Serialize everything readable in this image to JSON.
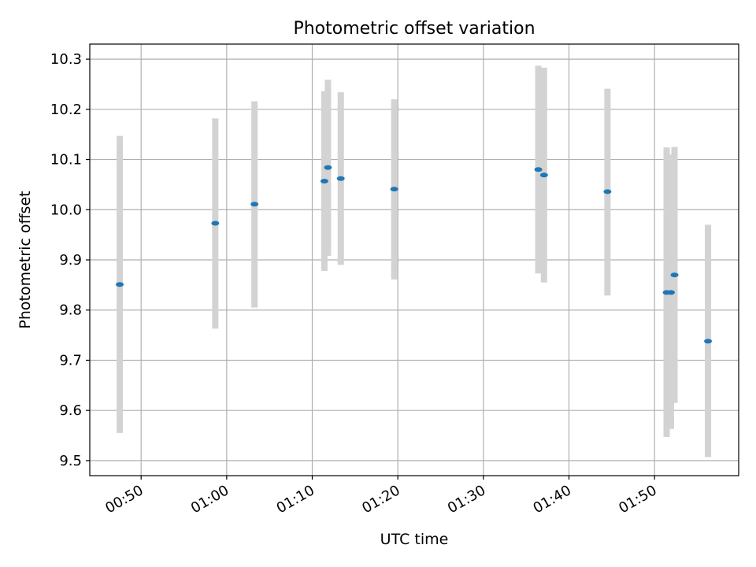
{
  "chart_data": {
    "type": "scatter",
    "title": "Photometric offset variation",
    "xlabel": "UTC time",
    "ylabel": "Photometric offset",
    "x_tick_labels": [
      "00:50",
      "01:00",
      "01:10",
      "01:20",
      "01:30",
      "01:40",
      "01:50"
    ],
    "y_tick_labels": [
      "9.5",
      "9.6",
      "9.7",
      "9.8",
      "9.9",
      "10.0",
      "10.1",
      "10.2",
      "10.3"
    ],
    "xlim": [
      "00:44:00",
      "01:59:50"
    ],
    "ylim": [
      9.47,
      10.33
    ],
    "grid": true,
    "colors": {
      "points": "#1f77b4",
      "error_bars": "#d3d3d3",
      "grid": "#b0b0b0"
    },
    "series": [
      {
        "points": [
          {
            "x": "00:47:30",
            "y": 9.851,
            "ylow": 9.555,
            "yhigh": 10.147
          },
          {
            "x": "00:58:40",
            "y": 9.973,
            "ylow": 9.763,
            "yhigh": 10.182
          },
          {
            "x": "01:03:15",
            "y": 10.011,
            "ylow": 9.805,
            "yhigh": 10.216
          },
          {
            "x": "01:11:25",
            "y": 10.057,
            "ylow": 9.878,
            "yhigh": 10.236
          },
          {
            "x": "01:11:50",
            "y": 10.084,
            "ylow": 9.908,
            "yhigh": 10.259
          },
          {
            "x": "01:13:20",
            "y": 10.062,
            "ylow": 9.89,
            "yhigh": 10.234
          },
          {
            "x": "01:19:35",
            "y": 10.041,
            "ylow": 9.861,
            "yhigh": 10.22
          },
          {
            "x": "01:36:25",
            "y": 10.08,
            "ylow": 9.873,
            "yhigh": 10.287
          },
          {
            "x": "01:37:05",
            "y": 10.069,
            "ylow": 9.855,
            "yhigh": 10.283
          },
          {
            "x": "01:44:30",
            "y": 10.036,
            "ylow": 9.829,
            "yhigh": 10.241
          },
          {
            "x": "01:51:25",
            "y": 9.835,
            "ylow": 9.547,
            "yhigh": 10.124
          },
          {
            "x": "01:51:55",
            "y": 9.835,
            "ylow": 9.563,
            "yhigh": 10.11
          },
          {
            "x": "01:52:20",
            "y": 9.87,
            "ylow": 9.615,
            "yhigh": 10.125
          },
          {
            "x": "01:56:15",
            "y": 9.738,
            "ylow": 9.507,
            "yhigh": 9.97
          }
        ]
      }
    ]
  }
}
